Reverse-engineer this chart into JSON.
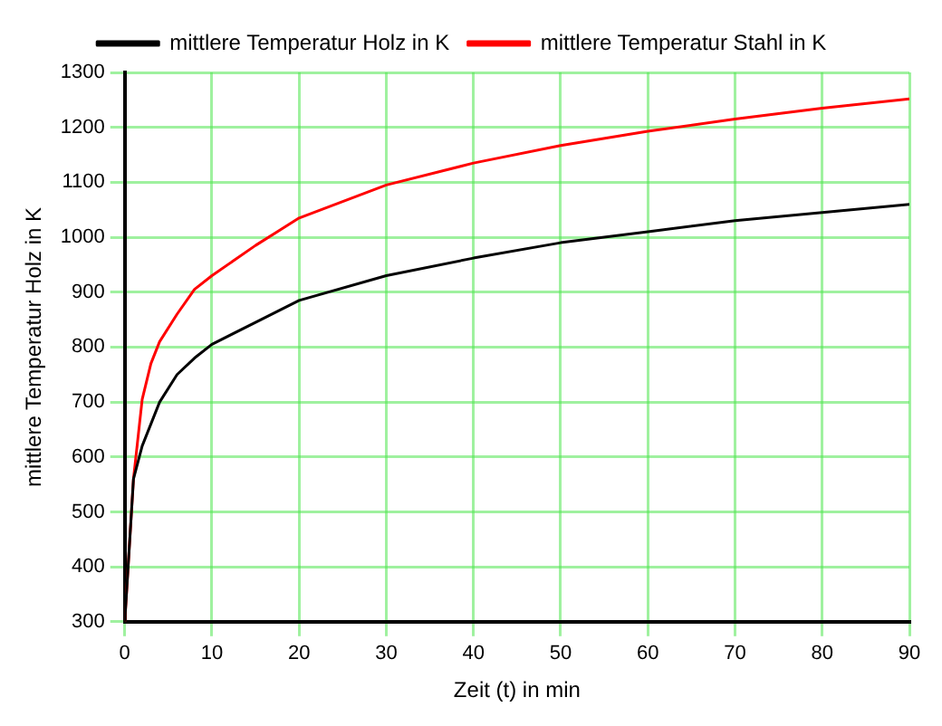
{
  "chart_data": {
    "type": "line",
    "xlabel": "Zeit (t) in min",
    "ylabel": "mittlere Temperatur Holz in K",
    "series": [
      {
        "name": "mittlere Temperatur Holz in K",
        "color": "#000000",
        "x": [
          0,
          1,
          2,
          4,
          6,
          8,
          10,
          15,
          20,
          30,
          40,
          50,
          60,
          70,
          80,
          90
        ],
        "values": [
          300,
          560,
          620,
          700,
          750,
          780,
          805,
          845,
          885,
          930,
          962,
          990,
          1010,
          1030,
          1045,
          1060
        ]
      },
      {
        "name": "mittlere Temperatur Stahl in K",
        "color": "#ff0000",
        "x": [
          0,
          1,
          2,
          3,
          4,
          6,
          8,
          10,
          15,
          20,
          30,
          40,
          50,
          60,
          70,
          80,
          90
        ],
        "values": [
          300,
          560,
          705,
          770,
          810,
          860,
          905,
          930,
          985,
          1035,
          1095,
          1135,
          1167,
          1193,
          1215,
          1235,
          1252
        ]
      }
    ],
    "xlim": [
      0,
      90
    ],
    "xticks": [
      0,
      10,
      20,
      30,
      40,
      50,
      60,
      70,
      80,
      90
    ],
    "ylim": [
      300,
      1300
    ],
    "yticks": [
      300,
      400,
      500,
      600,
      700,
      800,
      900,
      1000,
      1100,
      1200,
      1300
    ],
    "grid": true,
    "legend": "top",
    "marker": "none",
    "line_style": "solid"
  }
}
